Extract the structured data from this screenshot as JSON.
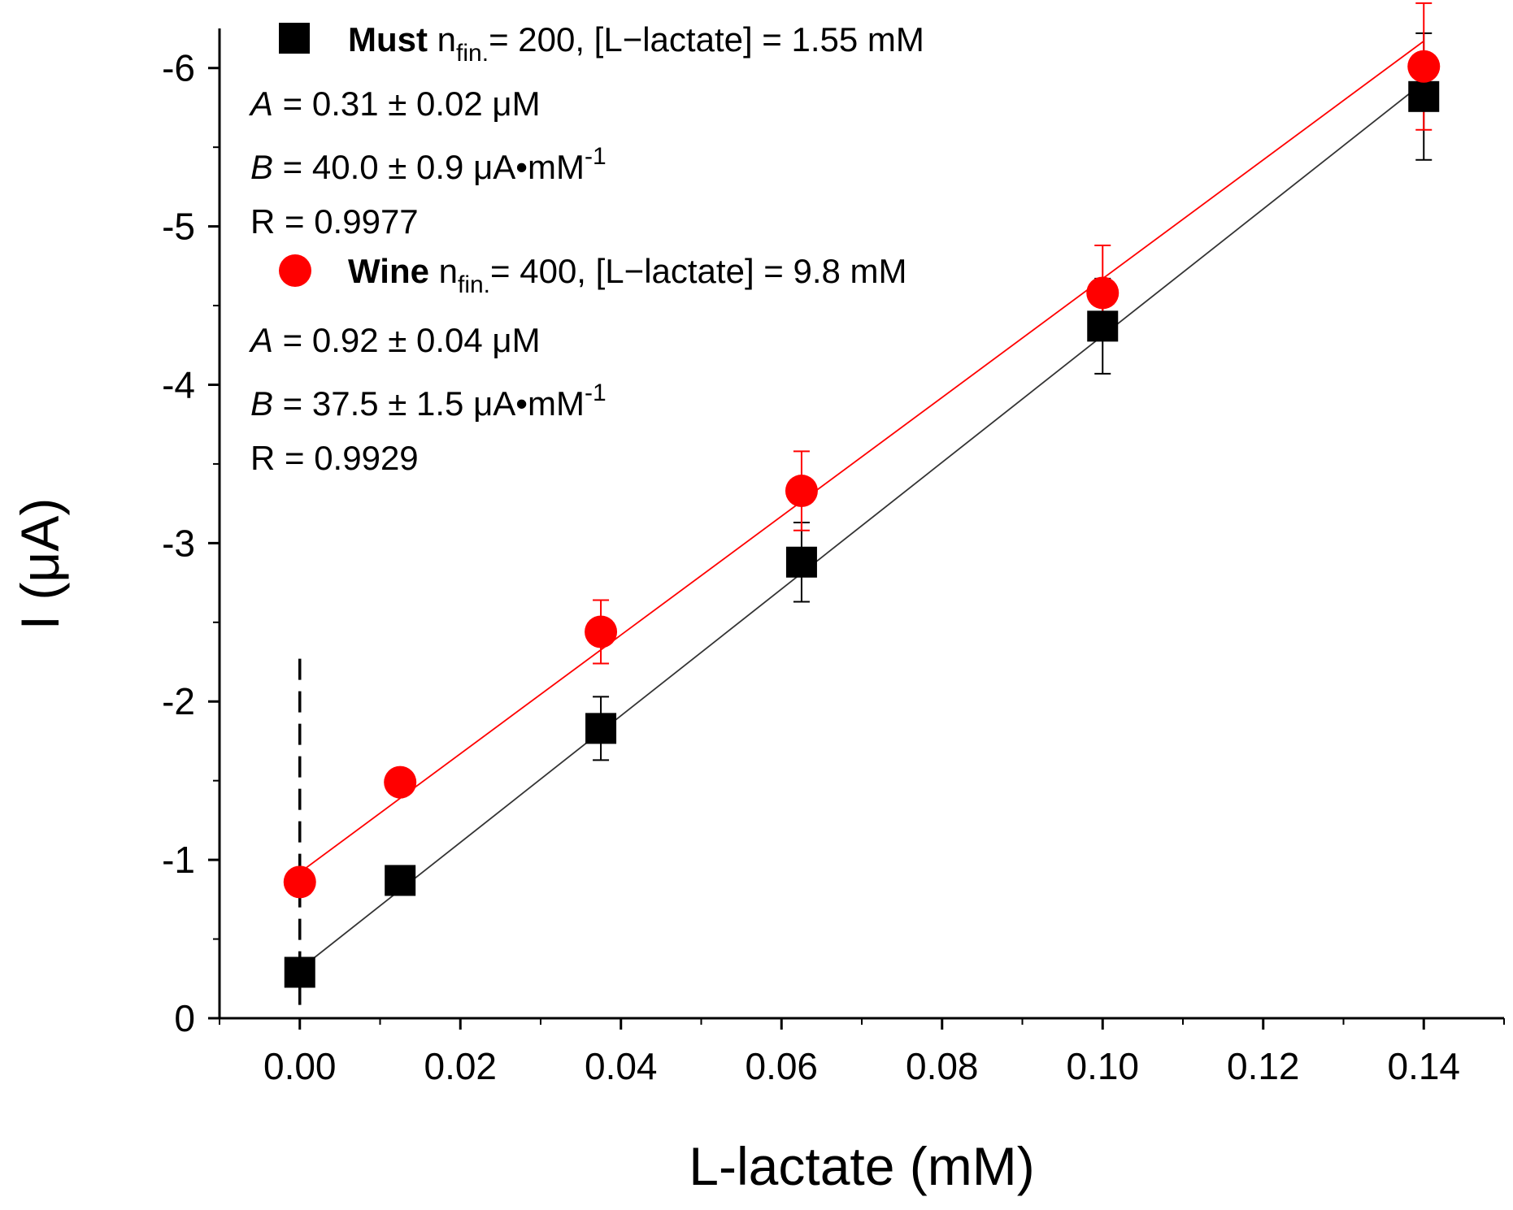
{
  "chart_data": {
    "type": "scatter",
    "xlabel": "L-lactate (mM)",
    "ylabel": "I (μA)",
    "xlim": [
      -0.01,
      0.15
    ],
    "ylim": [
      0,
      -6.25
    ],
    "y_axis_inverted": true,
    "x_ticks": [
      0.0,
      0.02,
      0.04,
      0.06,
      0.08,
      0.1,
      0.12,
      0.14
    ],
    "x_tick_labels": [
      "0.00",
      "0.02",
      "0.04",
      "0.06",
      "0.08",
      "0.10",
      "0.12",
      "0.14"
    ],
    "y_ticks": [
      0,
      -1,
      -2,
      -3,
      -4,
      -5,
      -6
    ],
    "y_tick_labels": [
      "0",
      "-1",
      "-2",
      "-3",
      "-4",
      "-5",
      "-6"
    ],
    "grid": false,
    "legend_position": "top-left",
    "dashed_marker_x": 0,
    "series": [
      {
        "name": "Must",
        "marker": "square",
        "color": "#000000",
        "x": [
          0.0,
          0.0125,
          0.0375,
          0.0625,
          0.1,
          0.14
        ],
        "y": [
          -0.29,
          -0.87,
          -1.83,
          -2.88,
          -4.37,
          -5.82
        ],
        "err": [
          0.0,
          0.0,
          0.2,
          0.25,
          0.3,
          0.4
        ],
        "fit": {
          "intercept": -0.31,
          "slope": -40.0
        },
        "legend_bold": "Must",
        "legend_n": "n",
        "legend_sub": "fin.",
        "legend_rest": "= 200, [L−lactate] = 1.55 mM",
        "param_a": "A",
        "param_a_text": " = 0.31 ± 0.02 μM",
        "param_b": "B",
        "param_b_text": " = 40.0 ± 0.9 μA•mM",
        "param_b_sup": "-1",
        "r_text": "R = 0.9977"
      },
      {
        "name": "Wine",
        "marker": "circle",
        "color": "#ff0000",
        "x": [
          0.0,
          0.0125,
          0.0375,
          0.0625,
          0.1,
          0.14
        ],
        "y": [
          -0.86,
          -1.49,
          -2.44,
          -3.33,
          -4.58,
          -6.01
        ],
        "err": [
          0.0,
          0.0,
          0.2,
          0.25,
          0.3,
          0.4
        ],
        "fit": {
          "intercept": -0.92,
          "slope": -37.5
        },
        "legend_bold": "Wine",
        "legend_n": "n",
        "legend_sub": "fin.",
        "legend_rest": "= 400, [L−lactate] = 9.8 mM",
        "param_a": "A",
        "param_a_text": " = 0.92 ± 0.04 μM",
        "param_b": "B",
        "param_b_text": " = 37.5 ± 1.5 μA•mM",
        "param_b_sup": "-1",
        "r_text": "R = 0.9929"
      }
    ]
  }
}
